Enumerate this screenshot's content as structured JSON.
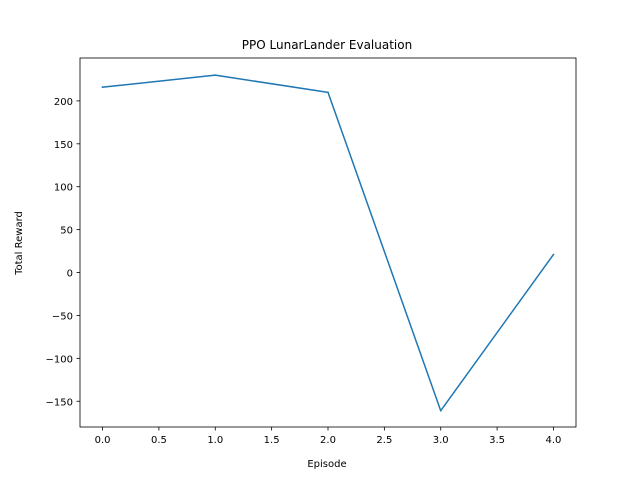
{
  "chart_data": {
    "type": "line",
    "title": "PPO LunarLander Evaluation",
    "xlabel": "Episode",
    "ylabel": "Total Reward",
    "x": [
      0,
      1,
      2,
      3,
      4
    ],
    "series": [
      {
        "values": [
          216,
          230,
          210,
          -161,
          21
        ],
        "color": "#1f77b4"
      }
    ],
    "xlim": [
      -0.2,
      4.2
    ],
    "ylim": [
      -180,
      250
    ],
    "xticks": [
      0.0,
      0.5,
      1.0,
      1.5,
      2.0,
      2.5,
      3.0,
      3.5,
      4.0
    ],
    "xtick_labels": [
      "0.0",
      "0.5",
      "1.0",
      "1.5",
      "2.0",
      "2.5",
      "3.0",
      "3.5",
      "4.0"
    ],
    "yticks": [
      -150,
      -100,
      -50,
      0,
      50,
      100,
      150,
      200
    ],
    "ytick_labels": [
      "−150",
      "−100",
      "−50",
      "0",
      "50",
      "100",
      "150",
      "200"
    ],
    "grid": false,
    "legend": "none"
  }
}
